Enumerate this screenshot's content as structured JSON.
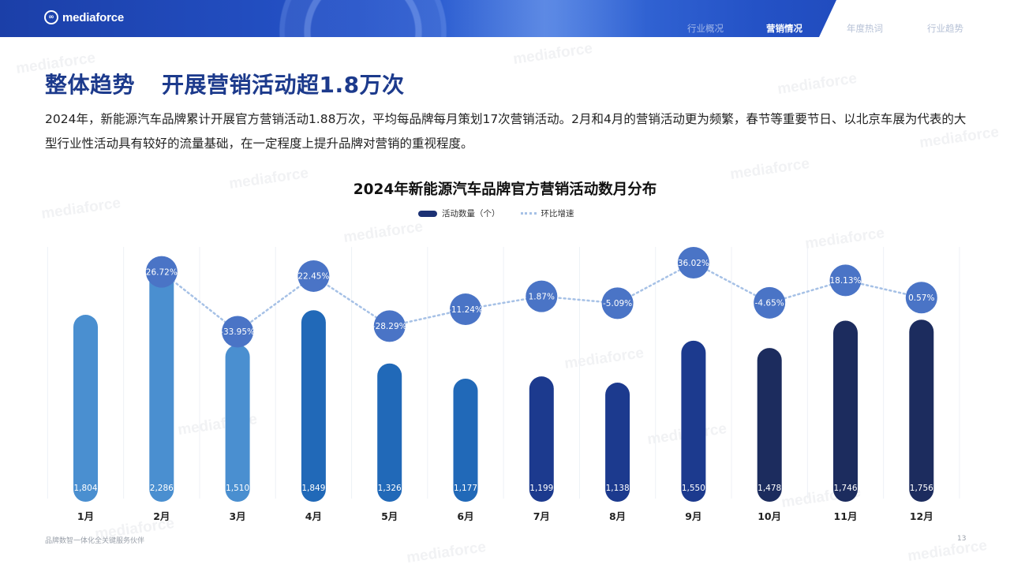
{
  "brand": {
    "logo_text": "mediaforce",
    "logo_mark": "∞"
  },
  "nav": {
    "items": [
      {
        "label": "行业概况",
        "active": false
      },
      {
        "label": "营销情况",
        "active": true
      },
      {
        "label": "年度热词",
        "active": false
      },
      {
        "label": "行业趋势",
        "active": false
      }
    ]
  },
  "page": {
    "title_main": "整体趋势",
    "title_sub": "开展营销活动超1.8万次",
    "intro": "2024年，新能源汽车品牌累计开展官方营销活动1.88万次，平均每品牌每月策划17次营销活动。2月和4月的营销活动更为频繁，春节等重要节日、以北京车展为代表的大型行业性活动具有较好的流量基础，在一定程度上提升品牌对营销的重视程度。"
  },
  "chart_data": {
    "type": "bar",
    "title": "2024年新能源汽车品牌官方营销活动数月分布",
    "categories": [
      "1月",
      "2月",
      "3月",
      "4月",
      "5月",
      "6月",
      "7月",
      "8月",
      "9月",
      "10月",
      "11月",
      "12月"
    ],
    "series": [
      {
        "name": "活动数量（个）",
        "type": "bar",
        "values": [
          1804,
          2286,
          1510,
          1849,
          1326,
          1177,
          1199,
          1138,
          1550,
          1478,
          1746,
          1756
        ],
        "labels": [
          "1,804",
          "2,286",
          "1,510",
          "1,849",
          "1,326",
          "1,177",
          "1,199",
          "1,138",
          "1,550",
          "1,478",
          "1,746",
          "1,756"
        ]
      },
      {
        "name": "环比增速",
        "type": "line",
        "values": [
          null,
          26.72,
          -33.95,
          22.45,
          -28.29,
          -11.24,
          1.87,
          -5.09,
          36.02,
          -4.65,
          18.13,
          0.57
        ],
        "labels": [
          "",
          "26.72%",
          "-33.95%",
          "22.45%",
          "-28.29%",
          "-11.24%",
          "1.87%",
          "-5.09%",
          "36.02%",
          "-4.65%",
          "18.13%",
          "0.57%"
        ]
      }
    ],
    "bar_colors": [
      "#4a8fd0",
      "#4a8fd0",
      "#4a8fd0",
      "#2169b8",
      "#2169b8",
      "#2169b8",
      "#1c3a8e",
      "#1c3a8e",
      "#1c3a8e",
      "#1c2c5e",
      "#1c2c5e",
      "#1c2c5e"
    ],
    "bubble_color": "#4a74c6",
    "line_color": "#a6c1e6",
    "grid": true,
    "legend_position": "top-center"
  },
  "footer": {
    "tagline": "品牌数智一体化全关键服务伙伴",
    "page_number": "13"
  },
  "watermark": "mediaforce"
}
